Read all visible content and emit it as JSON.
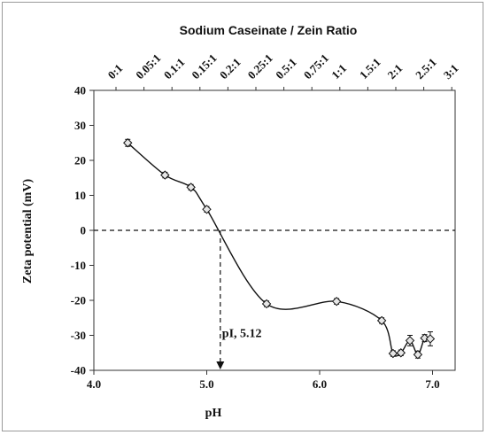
{
  "chart_data": {
    "type": "scatter",
    "xlabel": "pH",
    "ylabel": "Zeta potential (mV)",
    "top_axis_title": "Sodium Caseinate / Zein Ratio",
    "xlim": [
      4.0,
      7.2
    ],
    "ylim": [
      -40,
      40
    ],
    "x_ticks": [
      "4.0",
      "5.0",
      "6.0",
      "7.0"
    ],
    "x_tick_values": [
      4.0,
      5.0,
      6.0,
      7.0
    ],
    "y_ticks": [
      "40",
      "30",
      "20",
      "10",
      "0",
      "-10",
      "-20",
      "-30",
      "-40"
    ],
    "y_tick_values": [
      40,
      30,
      20,
      10,
      0,
      -10,
      -20,
      -30,
      -40
    ],
    "top_ticks": [
      "0:1",
      "0.05:1",
      "0.1:1",
      "0.15:1",
      "0.2:1",
      "0.25:1",
      "0.5:1",
      "0.75:1",
      "1:1",
      "1.5:1",
      "2:1",
      "2.5:1",
      "3:1"
    ],
    "points": [
      {
        "x": 4.3,
        "y": 25.0,
        "err": 1.0
      },
      {
        "x": 4.63,
        "y": 15.8,
        "err": 0.8
      },
      {
        "x": 4.86,
        "y": 12.3,
        "err": 0.8
      },
      {
        "x": 5.0,
        "y": 6.0,
        "err": 0.8
      },
      {
        "x": 5.53,
        "y": -21.0,
        "err": 0.8
      },
      {
        "x": 6.15,
        "y": -20.3,
        "err": 0.8
      },
      {
        "x": 6.55,
        "y": -25.8,
        "err": 0.8
      },
      {
        "x": 6.65,
        "y": -35.2,
        "err": 0.8
      },
      {
        "x": 6.72,
        "y": -35.0,
        "err": 0.8
      },
      {
        "x": 6.8,
        "y": -31.5,
        "err": 1.5
      },
      {
        "x": 6.87,
        "y": -35.5,
        "err": 1.0
      },
      {
        "x": 6.93,
        "y": -30.8,
        "err": 1.0
      },
      {
        "x": 6.98,
        "y": -31.0,
        "err": 2.0
      }
    ],
    "zero_line": {
      "y": 0,
      "style": "dashed"
    },
    "pI": {
      "x": 5.12,
      "label": "pI, 5.12"
    },
    "grid": false
  }
}
